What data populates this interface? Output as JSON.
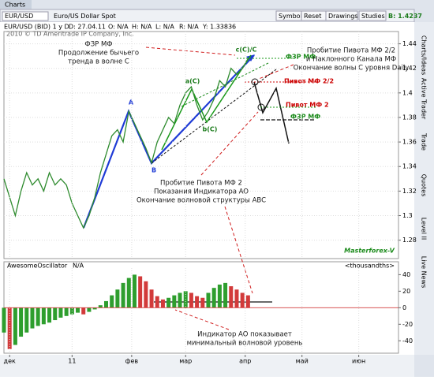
{
  "window": {
    "tab": "Charts"
  },
  "toolbar": {
    "symbol": "EUR/USD",
    "description": "Euro/US Dollar Spot",
    "buttons": [
      "Symbols",
      "Reset",
      "Drawings",
      "Studies"
    ],
    "bid": "B: 1.4237"
  },
  "info": [
    "EUR/USD (BID) 1 у D",
    "D: 27.04.11",
    "O: N/A",
    "H: N/A",
    "L: N/A",
    "R: N/A",
    "Y: 1.33836"
  ],
  "copyright": "2010 © TD Ameritrade IP Company, Inc.",
  "side_tabs": [
    "Charts/Ideas",
    "Active Trader",
    "Trade",
    "Quotes",
    "Level II",
    "Live News"
  ],
  "chart_data": [
    {
      "type": "line",
      "color": "#2e8b2e",
      "grid": true,
      "x": [
        0,
        2,
        4,
        6,
        8,
        10,
        12,
        14,
        16,
        18,
        20,
        22,
        24,
        26,
        28,
        30,
        32,
        34,
        36,
        38,
        40,
        42,
        44,
        46,
        48,
        50,
        52,
        54,
        56,
        58,
        60,
        62,
        64,
        66,
        68,
        70,
        72,
        74,
        76,
        78,
        80,
        82,
        84,
        86
      ],
      "values": [
        1.33,
        1.315,
        1.3,
        1.32,
        1.335,
        1.325,
        1.33,
        1.32,
        1.335,
        1.325,
        1.33,
        1.325,
        1.31,
        1.3,
        1.29,
        1.3,
        1.315,
        1.335,
        1.35,
        1.365,
        1.37,
        1.36,
        1.385,
        1.375,
        1.365,
        1.355,
        1.343,
        1.36,
        1.37,
        1.38,
        1.375,
        1.39,
        1.4,
        1.405,
        1.39,
        1.378,
        1.385,
        1.395,
        1.41,
        1.405,
        1.42,
        1.415,
        1.42,
        1.428
      ],
      "xlim": [
        0,
        139
      ],
      "ylim": [
        1.265,
        1.45
      ],
      "yticks": [
        1.28,
        1.3,
        1.32,
        1.34,
        1.36,
        1.38,
        1.4,
        1.42,
        1.44
      ],
      "wave_labels": [
        "A",
        "B",
        "a(C)",
        "b(C)",
        "c(C)/C"
      ],
      "levels": [
        "ФЗР МФ",
        "Пивот МФ 2/2",
        "Пивот МФ 2",
        "ФЗР МФ"
      ],
      "annotations": [
        [
          "ФЗР МФ",
          "Продолжение бычьего",
          "тренда в волне C"
        ],
        [
          "Пробитие Пивота МФ 2/2",
          "и Наклонного Канала МФ",
          "Окончание волны C уровня Daily"
        ],
        [
          "Пробитие Пивота МФ 2",
          "Показания Индикатора AO",
          "Окончание волновой структуры ABC"
        ]
      ],
      "watermark": "Masterforex-V"
    },
    {
      "type": "bar",
      "title": "AwesomeOscillator",
      "status": "N/A",
      "units": "<thousandths>",
      "up_color": "#2e9e2e",
      "down_color": "#d23a3a",
      "x": [
        0,
        2,
        4,
        6,
        8,
        10,
        12,
        14,
        16,
        18,
        20,
        22,
        24,
        26,
        28,
        30,
        32,
        34,
        36,
        38,
        40,
        42,
        44,
        46,
        48,
        50,
        52,
        54,
        56,
        58,
        60,
        62,
        64,
        66,
        68,
        70,
        72,
        74,
        76,
        78,
        80,
        82,
        84,
        86
      ],
      "values": [
        -30,
        -50,
        -45,
        -35,
        -30,
        -25,
        -22,
        -20,
        -18,
        -15,
        -12,
        -10,
        -8,
        -6,
        -8,
        -5,
        -2,
        3,
        8,
        15,
        22,
        30,
        36,
        40,
        38,
        32,
        22,
        14,
        10,
        12,
        15,
        18,
        20,
        18,
        14,
        12,
        18,
        24,
        28,
        30,
        26,
        22,
        18,
        15
      ],
      "xlim": [
        0,
        139
      ],
      "ylim": [
        -55,
        48
      ],
      "yticks": [
        -40,
        -20,
        0,
        20,
        40
      ],
      "xticks": [
        {
          "value": 2,
          "label": "дек"
        },
        {
          "value": 24,
          "label": "11"
        },
        {
          "value": 45,
          "label": "фев"
        },
        {
          "value": 64,
          "label": "мар"
        },
        {
          "value": 85,
          "label": "апр"
        },
        {
          "value": 105,
          "label": "май"
        },
        {
          "value": 125,
          "label": "июн"
        }
      ],
      "annotations": [
        [
          "Индикатор AO показывает",
          "минимальный волновой уровень"
        ]
      ]
    }
  ]
}
